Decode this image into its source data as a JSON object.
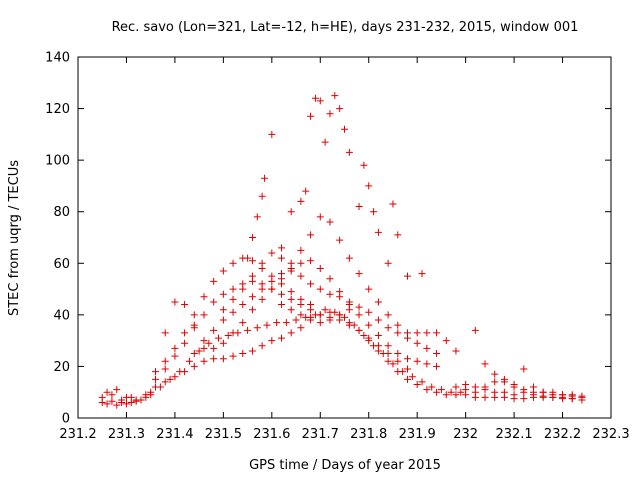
{
  "chart_data": {
    "type": "scatter",
    "title": "Rec. savo (Lon=321, Lat=-12, h=HE), days 231-232, 2015, window 001",
    "xlabel": "GPS time / Days of year 2015",
    "ylabel": "STEC from uqrg / TECUs",
    "xlim": [
      231.2,
      232.3
    ],
    "ylim": [
      0,
      140
    ],
    "xticks": [
      "231.2",
      "231.3",
      "231.4",
      "231.5",
      "231.6",
      "231.7",
      "231.8",
      "231.9",
      "232",
      "232.1",
      "232.2",
      "232.3"
    ],
    "yticks": [
      "0",
      "20",
      "40",
      "60",
      "80",
      "100",
      "120",
      "140"
    ],
    "grid": false,
    "marker": "+",
    "series": [
      {
        "color": "#e00000",
        "points": [
          [
            231.25,
            6
          ],
          [
            231.26,
            5.5
          ],
          [
            231.27,
            6.5
          ],
          [
            231.28,
            5
          ],
          [
            231.29,
            6
          ],
          [
            231.3,
            5.5
          ],
          [
            231.31,
            6
          ],
          [
            231.32,
            6.5
          ],
          [
            231.33,
            7
          ],
          [
            231.34,
            8
          ],
          [
            231.35,
            10
          ],
          [
            231.36,
            12
          ],
          [
            231.38,
            14
          ],
          [
            231.4,
            16
          ],
          [
            231.42,
            18
          ],
          [
            231.44,
            20
          ],
          [
            231.46,
            22
          ],
          [
            231.48,
            23
          ],
          [
            231.5,
            23
          ],
          [
            231.52,
            24
          ],
          [
            231.54,
            25
          ],
          [
            231.56,
            26
          ],
          [
            231.58,
            28
          ],
          [
            231.6,
            30
          ],
          [
            231.62,
            31
          ],
          [
            231.64,
            33
          ],
          [
            231.66,
            35
          ],
          [
            231.68,
            38
          ],
          [
            231.7,
            40
          ],
          [
            231.72,
            41
          ],
          [
            231.74,
            40
          ],
          [
            231.76,
            37
          ],
          [
            231.78,
            34
          ],
          [
            231.8,
            30
          ],
          [
            231.82,
            26
          ],
          [
            231.84,
            22
          ],
          [
            231.86,
            18
          ],
          [
            231.88,
            15
          ],
          [
            231.9,
            13
          ],
          [
            231.92,
            11
          ],
          [
            231.94,
            10
          ],
          [
            231.96,
            9
          ],
          [
            231.98,
            9
          ],
          [
            232.0,
            9
          ],
          [
            232.02,
            8
          ],
          [
            232.04,
            8
          ],
          [
            232.06,
            8
          ],
          [
            232.08,
            8
          ],
          [
            232.1,
            7.5
          ],
          [
            232.12,
            7.5
          ],
          [
            232.14,
            8
          ],
          [
            232.16,
            8
          ],
          [
            232.18,
            8
          ],
          [
            232.2,
            7.5
          ],
          [
            232.22,
            7.5
          ],
          [
            232.24,
            7
          ],
          [
            231.25,
            8
          ],
          [
            231.27,
            9
          ],
          [
            231.29,
            7
          ],
          [
            231.31,
            8
          ],
          [
            231.33,
            7
          ],
          [
            231.35,
            9
          ],
          [
            231.37,
            12
          ],
          [
            231.39,
            15
          ],
          [
            231.41,
            18
          ],
          [
            231.43,
            22
          ],
          [
            231.45,
            26
          ],
          [
            231.47,
            29
          ],
          [
            231.49,
            31
          ],
          [
            231.51,
            32
          ],
          [
            231.53,
            33
          ],
          [
            231.55,
            34
          ],
          [
            231.57,
            35
          ],
          [
            231.59,
            36
          ],
          [
            231.61,
            37
          ],
          [
            231.63,
            37
          ],
          [
            231.65,
            38
          ],
          [
            231.67,
            39
          ],
          [
            231.69,
            40
          ],
          [
            231.71,
            42
          ],
          [
            231.73,
            41
          ],
          [
            231.75,
            39
          ],
          [
            231.77,
            36
          ],
          [
            231.79,
            32
          ],
          [
            231.81,
            28
          ],
          [
            231.83,
            25
          ],
          [
            231.85,
            21
          ],
          [
            231.87,
            18
          ],
          [
            231.89,
            16
          ],
          [
            231.91,
            14
          ],
          [
            231.93,
            12
          ],
          [
            231.95,
            11
          ],
          [
            231.97,
            10
          ],
          [
            231.99,
            10
          ],
          [
            231.36,
            15
          ],
          [
            231.38,
            19
          ],
          [
            231.4,
            24
          ],
          [
            231.42,
            29
          ],
          [
            231.44,
            35
          ],
          [
            231.46,
            40
          ],
          [
            231.48,
            45
          ],
          [
            231.5,
            48
          ],
          [
            231.52,
            50
          ],
          [
            231.54,
            52
          ],
          [
            231.56,
            53
          ],
          [
            231.58,
            52
          ],
          [
            231.6,
            50
          ],
          [
            231.62,
            48
          ],
          [
            231.64,
            46
          ],
          [
            231.66,
            44
          ],
          [
            231.68,
            42
          ],
          [
            231.7,
            40
          ],
          [
            231.72,
            39
          ],
          [
            231.74,
            38
          ],
          [
            231.76,
            36
          ],
          [
            231.78,
            34
          ],
          [
            231.8,
            31
          ],
          [
            231.82,
            28
          ],
          [
            231.84,
            25
          ],
          [
            231.86,
            22
          ],
          [
            231.88,
            19
          ],
          [
            231.38,
            22
          ],
          [
            231.4,
            27
          ],
          [
            231.42,
            33
          ],
          [
            231.44,
            40
          ],
          [
            231.46,
            47
          ],
          [
            231.48,
            53
          ],
          [
            231.5,
            57
          ],
          [
            231.52,
            60
          ],
          [
            231.54,
            62
          ],
          [
            231.56,
            61
          ],
          [
            231.58,
            58
          ],
          [
            231.6,
            55
          ],
          [
            231.62,
            52
          ],
          [
            231.64,
            49
          ],
          [
            231.66,
            46
          ],
          [
            231.68,
            44
          ],
          [
            231.42,
            44
          ],
          [
            231.44,
            36
          ],
          [
            231.46,
            30
          ],
          [
            231.48,
            27
          ],
          [
            231.5,
            29
          ],
          [
            231.52,
            33
          ],
          [
            231.54,
            37
          ],
          [
            231.56,
            42
          ],
          [
            231.58,
            46
          ],
          [
            231.6,
            50
          ],
          [
            231.62,
            54
          ],
          [
            231.64,
            57
          ],
          [
            231.66,
            60
          ],
          [
            231.68,
            61
          ],
          [
            231.7,
            58
          ],
          [
            231.72,
            54
          ],
          [
            231.74,
            49
          ],
          [
            231.76,
            44
          ],
          [
            231.78,
            40
          ],
          [
            231.8,
            36
          ],
          [
            231.82,
            32
          ],
          [
            231.84,
            28
          ],
          [
            231.86,
            25
          ],
          [
            231.88,
            23
          ],
          [
            231.9,
            22
          ],
          [
            231.92,
            21
          ],
          [
            231.94,
            20
          ],
          [
            231.5,
            38
          ],
          [
            231.52,
            41
          ],
          [
            231.54,
            44
          ],
          [
            231.56,
            47
          ],
          [
            231.58,
            50
          ],
          [
            231.6,
            53
          ],
          [
            231.62,
            56
          ],
          [
            231.64,
            60
          ],
          [
            231.66,
            65
          ],
          [
            231.68,
            71
          ],
          [
            231.7,
            78
          ],
          [
            231.72,
            76
          ],
          [
            231.74,
            69
          ],
          [
            231.76,
            62
          ],
          [
            231.78,
            56
          ],
          [
            231.8,
            50
          ],
          [
            231.82,
            45
          ],
          [
            231.84,
            40
          ],
          [
            231.86,
            36
          ],
          [
            231.88,
            33
          ],
          [
            231.9,
            33
          ],
          [
            231.92,
            33
          ],
          [
            231.94,
            33
          ],
          [
            231.96,
            30
          ],
          [
            231.98,
            26
          ],
          [
            231.55,
            62
          ],
          [
            231.56,
            70
          ],
          [
            231.57,
            78
          ],
          [
            231.58,
            86
          ],
          [
            231.585,
            93
          ],
          [
            231.6,
            110
          ],
          [
            231.62,
            66
          ],
          [
            231.64,
            80
          ],
          [
            231.66,
            84
          ],
          [
            231.67,
            88
          ],
          [
            231.68,
            117
          ],
          [
            231.69,
            124
          ],
          [
            231.7,
            123
          ],
          [
            231.71,
            107
          ],
          [
            231.72,
            118
          ],
          [
            231.73,
            125
          ],
          [
            231.74,
            120
          ],
          [
            231.75,
            112
          ],
          [
            231.76,
            103
          ],
          [
            231.78,
            82
          ],
          [
            231.79,
            98
          ],
          [
            231.8,
            90
          ],
          [
            231.81,
            80
          ],
          [
            231.82,
            72
          ],
          [
            231.84,
            60
          ],
          [
            231.85,
            83
          ],
          [
            231.86,
            71
          ],
          [
            231.88,
            55
          ],
          [
            231.91,
            56
          ],
          [
            231.62,
            44
          ],
          [
            231.64,
            42
          ],
          [
            231.66,
            40
          ],
          [
            231.68,
            39
          ],
          [
            231.7,
            37
          ],
          [
            231.72,
            38
          ],
          [
            231.74,
            40
          ],
          [
            231.76,
            42
          ],
          [
            232.02,
            34
          ],
          [
            232.04,
            21
          ],
          [
            232.06,
            17
          ],
          [
            232.08,
            14
          ],
          [
            232.1,
            12
          ],
          [
            232.12,
            10
          ],
          [
            232.14,
            9
          ],
          [
            232.16,
            8.5
          ],
          [
            232.18,
            8
          ],
          [
            232.2,
            8
          ],
          [
            232.22,
            7.5
          ],
          [
            232.0,
            13
          ],
          [
            232.02,
            12
          ],
          [
            232.04,
            11
          ],
          [
            232.06,
            10
          ],
          [
            232.08,
            10
          ],
          [
            232.1,
            9
          ],
          [
            232.12,
            19
          ],
          [
            232.14,
            12
          ],
          [
            232.16,
            10
          ],
          [
            232.18,
            10
          ],
          [
            232.2,
            9
          ],
          [
            232.22,
            9
          ],
          [
            232.24,
            8
          ],
          [
            231.98,
            12
          ],
          [
            232.0,
            11
          ],
          [
            232.02,
            10
          ],
          [
            232.04,
            12
          ],
          [
            232.06,
            14
          ],
          [
            232.08,
            15
          ],
          [
            232.1,
            13
          ],
          [
            232.12,
            11
          ],
          [
            232.14,
            10
          ],
          [
            232.16,
            10
          ],
          [
            232.18,
            9
          ],
          [
            232.2,
            9
          ],
          [
            232.22,
            8.5
          ],
          [
            232.24,
            8.5
          ],
          [
            231.26,
            10
          ],
          [
            231.28,
            11
          ],
          [
            231.3,
            8
          ],
          [
            231.32,
            7
          ],
          [
            231.34,
            9
          ],
          [
            231.36,
            18
          ],
          [
            231.38,
            33
          ],
          [
            231.4,
            45
          ],
          [
            231.44,
            25
          ],
          [
            231.46,
            27
          ],
          [
            231.48,
            34
          ],
          [
            231.5,
            42
          ],
          [
            231.52,
            46
          ],
          [
            231.54,
            50
          ],
          [
            231.56,
            55
          ],
          [
            231.58,
            60
          ],
          [
            231.6,
            64
          ],
          [
            231.62,
            62
          ],
          [
            231.64,
            58
          ],
          [
            231.66,
            55
          ],
          [
            231.68,
            52
          ],
          [
            231.7,
            50
          ],
          [
            231.72,
            48
          ],
          [
            231.74,
            47
          ],
          [
            231.76,
            45
          ],
          [
            231.78,
            43
          ],
          [
            231.8,
            41
          ],
          [
            231.82,
            38
          ],
          [
            231.84,
            35
          ],
          [
            231.86,
            33
          ],
          [
            231.88,
            31
          ],
          [
            231.9,
            29
          ],
          [
            231.92,
            27
          ],
          [
            231.94,
            25
          ]
        ]
      }
    ]
  }
}
